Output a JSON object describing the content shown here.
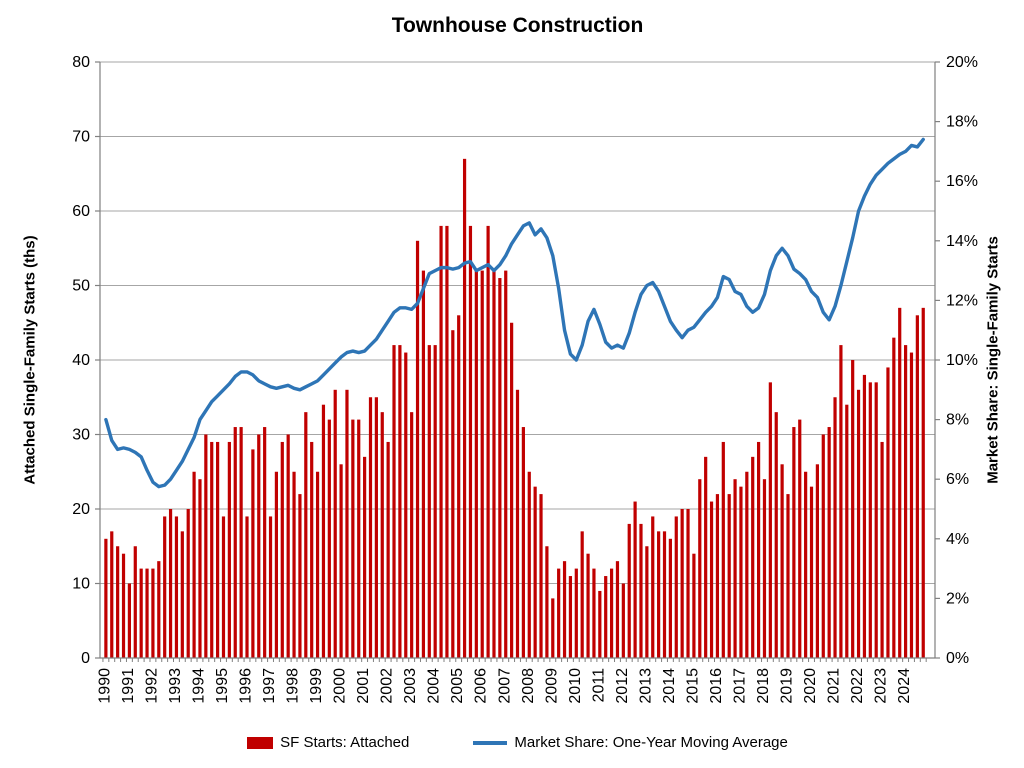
{
  "title": "Townhouse Construction",
  "left_axis": {
    "title": "Attached Single-Family Starts (ths)",
    "tick_labels": [
      "0",
      "10",
      "20",
      "30",
      "40",
      "50",
      "60",
      "70",
      "80"
    ],
    "min": 0,
    "max": 80,
    "step": 10
  },
  "right_axis": {
    "title": "Market Share: Single-Family Starts",
    "tick_labels": [
      "0%",
      "2%",
      "4%",
      "6%",
      "8%",
      "10%",
      "12%",
      "14%",
      "16%",
      "18%",
      "20%"
    ],
    "min": 0,
    "max": 20,
    "step": 2
  },
  "x_axis": {
    "year_labels": [
      "1990",
      "1991",
      "1992",
      "1993",
      "1994",
      "1995",
      "1996",
      "1997",
      "1998",
      "1999",
      "2000",
      "2001",
      "2002",
      "2003",
      "2004",
      "2005",
      "2006",
      "2007",
      "2008",
      "2009",
      "2010",
      "2011",
      "2012",
      "2013",
      "2014",
      "2015",
      "2016",
      "2017",
      "2018",
      "2019",
      "2020",
      "2021",
      "2022",
      "2023",
      "2024"
    ]
  },
  "legend": {
    "bar_label": "SF Starts: Attached",
    "line_label": "Market Share: One-Year Moving Average"
  },
  "colors": {
    "bar": "#C00000",
    "line": "#2E75B6",
    "gridline": "#A6A6A6",
    "axis": "#808080",
    "text": "#000000"
  },
  "chart_data": {
    "type": "combo",
    "frequency": "quarterly",
    "x_start": "1990Q1",
    "x_end": "2024Q4",
    "grid": "horizontal-only",
    "legend_position": "bottom-center",
    "series": [
      {
        "name": "SF Starts: Attached",
        "type": "bar",
        "axis": "left",
        "units": "thousands",
        "values": [
          16,
          17,
          15,
          14,
          10,
          15,
          12,
          12,
          12,
          13,
          19,
          20,
          19,
          17,
          20,
          25,
          24,
          30,
          29,
          29,
          19,
          29,
          31,
          31,
          19,
          28,
          30,
          31,
          19,
          25,
          29,
          30,
          25,
          22,
          33,
          29,
          25,
          34,
          32,
          36,
          26,
          36,
          32,
          32,
          27,
          35,
          35,
          33,
          29,
          42,
          42,
          41,
          33,
          56,
          52,
          42,
          42,
          58,
          58,
          44,
          46,
          67,
          58,
          52,
          52,
          58,
          52,
          51,
          52,
          45,
          36,
          31,
          25,
          23,
          22,
          15,
          8,
          12,
          13,
          11,
          12,
          17,
          14,
          12,
          9,
          11,
          12,
          13,
          10,
          18,
          21,
          18,
          15,
          19,
          17,
          17,
          16,
          19,
          20,
          20,
          14,
          24,
          27,
          21,
          22,
          29,
          22,
          24,
          23,
          25,
          27,
          29,
          24,
          37,
          33,
          26,
          22,
          31,
          32,
          25,
          23,
          26,
          30,
          31,
          35,
          42,
          34,
          40,
          36,
          38,
          37,
          37,
          29,
          39,
          43,
          47,
          42,
          41,
          46,
          47
        ]
      },
      {
        "name": "Market Share: One-Year Moving Average",
        "type": "line",
        "axis": "right",
        "units": "percent",
        "values": [
          8.0,
          7.3,
          7.0,
          7.05,
          7.0,
          6.9,
          6.75,
          6.3,
          5.9,
          5.75,
          5.8,
          6.0,
          6.3,
          6.6,
          7.0,
          7.4,
          8.0,
          8.3,
          8.6,
          8.8,
          9.0,
          9.2,
          9.45,
          9.6,
          9.6,
          9.5,
          9.3,
          9.2,
          9.1,
          9.05,
          9.1,
          9.15,
          9.05,
          9.0,
          9.1,
          9.2,
          9.3,
          9.5,
          9.7,
          9.9,
          10.1,
          10.25,
          10.3,
          10.25,
          10.3,
          10.5,
          10.7,
          11.0,
          11.3,
          11.6,
          11.75,
          11.75,
          11.7,
          11.9,
          12.4,
          12.9,
          13.0,
          13.1,
          13.1,
          13.05,
          13.1,
          13.25,
          13.3,
          13.0,
          13.1,
          13.2,
          13.0,
          13.2,
          13.5,
          13.9,
          14.2,
          14.5,
          14.6,
          14.2,
          14.4,
          14.1,
          13.5,
          12.4,
          11.0,
          10.2,
          10.0,
          10.5,
          11.3,
          11.7,
          11.2,
          10.6,
          10.4,
          10.5,
          10.4,
          10.9,
          11.6,
          12.2,
          12.5,
          12.6,
          12.3,
          11.8,
          11.3,
          11.0,
          10.75,
          11.0,
          11.1,
          11.35,
          11.6,
          11.8,
          12.1,
          12.8,
          12.7,
          12.3,
          12.2,
          11.8,
          11.6,
          11.75,
          12.2,
          13.0,
          13.5,
          13.75,
          13.5,
          13.05,
          12.9,
          12.7,
          12.3,
          12.1,
          11.6,
          11.35,
          11.8,
          12.5,
          13.3,
          14.1,
          15.0,
          15.5,
          15.9,
          16.2,
          16.4,
          16.6,
          16.75,
          16.9,
          17.0,
          17.2,
          17.15,
          17.4
        ]
      }
    ]
  }
}
